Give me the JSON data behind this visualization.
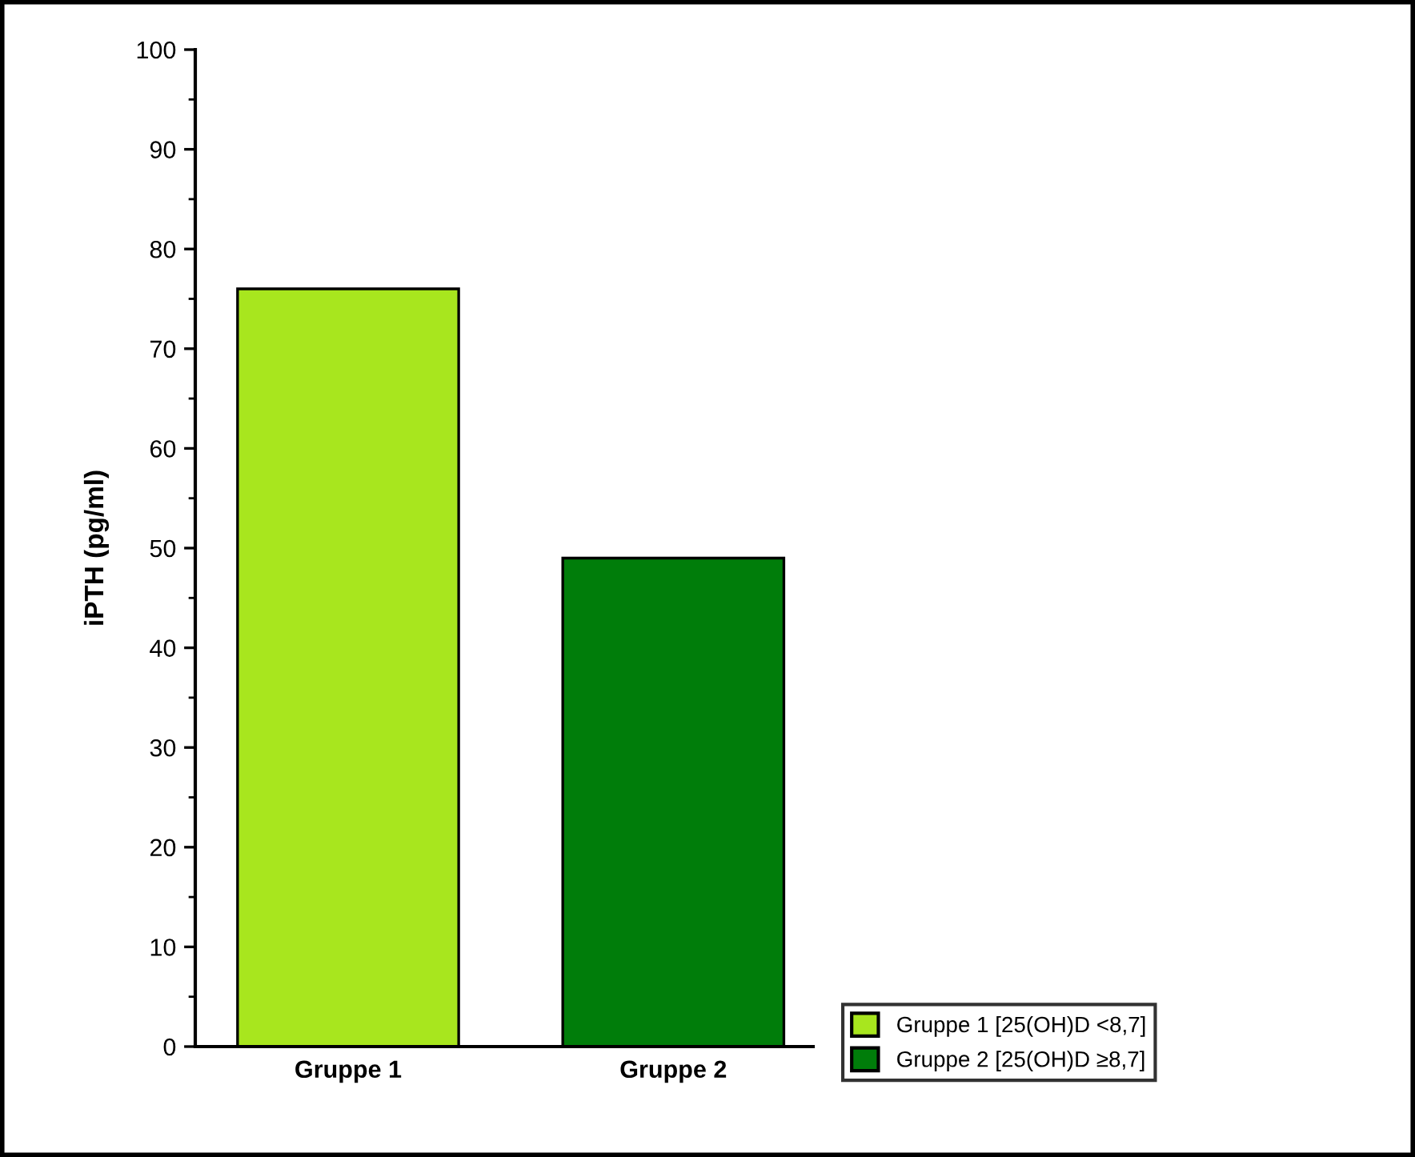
{
  "chart_data": {
    "type": "bar",
    "ylabel": "iPTH (pg/ml)",
    "categories": [
      "Gruppe 1",
      "Gruppe 2"
    ],
    "series": [
      {
        "name": "Gruppe 1 [25(OH)D <8,7]",
        "color": "#a8e61e",
        "values": [
          76,
          null
        ]
      },
      {
        "name": "Gruppe 2 [25(OH)D ≥8,7]",
        "color": "#007d0a",
        "values": [
          null,
          49
        ]
      }
    ],
    "ylim": [
      0,
      100
    ],
    "yticks": [
      0,
      10,
      20,
      30,
      40,
      50,
      60,
      70,
      80,
      90,
      100
    ],
    "grid": false,
    "legend": "bottom right"
  }
}
